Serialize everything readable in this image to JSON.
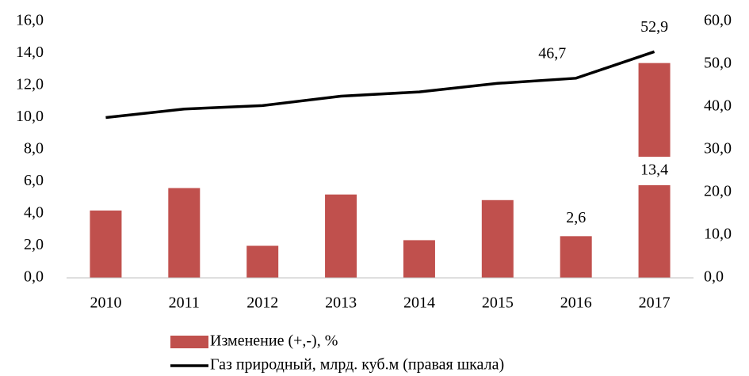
{
  "chart_data": {
    "type": "bar+line",
    "categories": [
      "2010",
      "2011",
      "2012",
      "2013",
      "2014",
      "2015",
      "2016",
      "2017"
    ],
    "series": [
      {
        "name": "Изменение (+,-), %",
        "type": "bar",
        "color": "#c0504d",
        "values": [
          4.2,
          5.6,
          2.0,
          5.2,
          2.35,
          4.85,
          2.6,
          13.4
        ],
        "value_labels": [
          null,
          null,
          null,
          null,
          null,
          null,
          "2,6",
          "13,4"
        ]
      },
      {
        "name": "Газ природный, млрд. куб.м (правая шкала)",
        "type": "line",
        "color": "#000000",
        "axis": "y2",
        "values": [
          37.5,
          39.5,
          40.3,
          42.5,
          43.5,
          45.5,
          46.7,
          52.9
        ],
        "value_labels": [
          null,
          null,
          null,
          null,
          null,
          null,
          "46,7",
          "52,9"
        ]
      }
    ],
    "ylim": [
      0,
      16
    ],
    "yticks": [
      {
        "value": 0,
        "label": "0,0"
      },
      {
        "value": 2,
        "label": "2,0"
      },
      {
        "value": 4,
        "label": "4,0"
      },
      {
        "value": 6,
        "label": "6,0"
      },
      {
        "value": 8,
        "label": "8,0"
      },
      {
        "value": 10,
        "label": "10,0"
      },
      {
        "value": 12,
        "label": "12,0"
      },
      {
        "value": 14,
        "label": "14,0"
      },
      {
        "value": 16,
        "label": "16,0"
      }
    ],
    "y2lim": [
      0,
      60
    ],
    "y2ticks": [
      {
        "value": 0,
        "label": "0,0"
      },
      {
        "value": 10,
        "label": "10,0"
      },
      {
        "value": 20,
        "label": "20,0"
      },
      {
        "value": 30,
        "label": "30,0"
      },
      {
        "value": 40,
        "label": "40,0"
      },
      {
        "value": 50,
        "label": "50,0"
      },
      {
        "value": 60,
        "label": "60,0"
      }
    ],
    "grid": false
  }
}
